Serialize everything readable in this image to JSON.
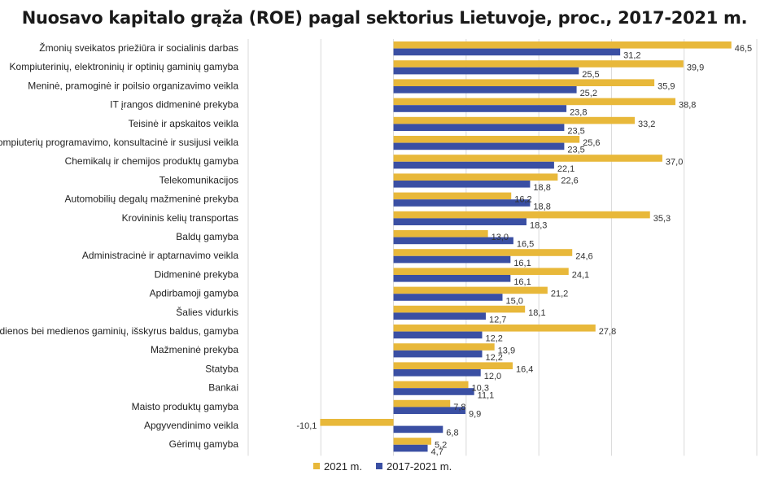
{
  "chart_data": {
    "type": "bar",
    "orientation": "horizontal",
    "title": "Nuosavo kapitalo grąža (ROE) pagal sektorius Lietuvoje, proc., 2017-2021 m.",
    "categories": [
      "Žmonių sveikatos priežiūra ir socialinis darbas",
      "Kompiuterinių, elektroninių ir optinių gaminių gamyba",
      "Meninė, pramoginė ir poilsio organizavimo veikla",
      "IT įrangos didmeninė prekyba",
      "Teisinė ir apskaitos veikla",
      "Kompiuterių programavimo, konsultacinė ir susijusi veikla",
      "Chemikalų ir chemijos produktų gamyba",
      "Telekomunikacijos",
      "Automobilių degalų mažmeninė prekyba",
      "Krovininis kelių transportas",
      "Baldų gamyba",
      "Administracinė ir aptarnavimo veikla",
      "Didmeninė prekyba",
      "Apdirbamoji gamyba",
      "Šalies vidurkis",
      "Medienos bei medienos gaminių, išskyrus baldus, gamyba",
      "Mažmeninė prekyba",
      "Statyba",
      "Bankai",
      "Maisto produktų gamyba",
      "Apgyvendinimo veikla",
      "Gėrimų gamyba"
    ],
    "series": [
      {
        "name": "2021 m.",
        "color": "#E8B83A",
        "values": [
          46.5,
          39.9,
          35.9,
          38.8,
          33.2,
          25.6,
          37.0,
          22.6,
          16.2,
          35.3,
          13.0,
          24.6,
          24.1,
          21.2,
          18.1,
          27.8,
          13.9,
          16.4,
          10.3,
          7.8,
          -10.1,
          5.2
        ],
        "labels": [
          "46,5",
          "39,9",
          "35,9",
          "38,8",
          "33,2",
          "25,6",
          "37,0",
          "22,6",
          "16,2",
          "35,3",
          "13,0",
          "24,6",
          "24,1",
          "21,2",
          "18,1",
          "27,8",
          "13,9",
          "16,4",
          "10,3",
          "7,8",
          "-10,1",
          "5,2"
        ]
      },
      {
        "name": "2017-2021 m.",
        "color": "#3A4FA3",
        "values": [
          31.2,
          25.5,
          25.2,
          23.8,
          23.5,
          23.5,
          22.1,
          18.8,
          18.8,
          18.3,
          16.5,
          16.1,
          16.1,
          15.0,
          12.7,
          12.2,
          12.2,
          12.0,
          11.1,
          9.9,
          6.8,
          4.7
        ],
        "labels": [
          "31,2",
          "25,5",
          "25,2",
          "23,8",
          "23,5",
          "23,5",
          "22,1",
          "18,8",
          "18,8",
          "18,3",
          "16,5",
          "16,1",
          "16,1",
          "15,0",
          "12,7",
          "12,2",
          "12,2",
          "12,0",
          "11,1",
          "9,9",
          "6,8",
          "4,7"
        ]
      }
    ],
    "xlim": [
      -20,
      50
    ],
    "grid_step": 10,
    "grid": true,
    "legend_position": "bottom"
  }
}
